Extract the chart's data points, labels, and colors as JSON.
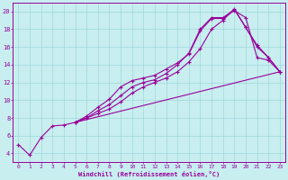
{
  "xlabel": "Windchill (Refroidissement éolien,°C)",
  "bg_color": "#c8eef0",
  "line_color": "#990099",
  "grid_color": "#a0d8d8",
  "curve1_x": [
    0,
    1,
    2,
    3,
    4,
    5,
    6,
    7,
    8,
    9,
    10,
    11,
    12,
    13,
    14,
    15,
    16,
    17,
    18,
    19,
    20,
    21,
    22,
    23
  ],
  "curve1_y": [
    5.0,
    3.8,
    5.8,
    7.1,
    7.2,
    7.5,
    8.2,
    9.2,
    10.1,
    11.5,
    12.2,
    12.5,
    12.8,
    13.5,
    14.2,
    15.2,
    17.8,
    19.2,
    19.2,
    20.1,
    19.3,
    14.8,
    14.5,
    13.2
  ],
  "curve2_x": [
    5,
    6,
    7,
    8,
    9,
    10,
    11,
    12,
    13,
    14,
    15,
    16,
    17,
    18,
    19,
    20,
    21,
    22,
    23
  ],
  "curve2_y": [
    7.5,
    8.0,
    8.8,
    9.5,
    10.5,
    11.5,
    12.0,
    12.3,
    13.0,
    14.0,
    15.3,
    18.0,
    19.3,
    19.3,
    20.2,
    18.2,
    16.2,
    14.8,
    13.2
  ],
  "curve3_x": [
    5,
    6,
    7,
    8,
    9,
    10,
    11,
    12,
    13,
    14,
    15,
    16,
    17,
    18,
    19,
    20,
    21,
    22,
    23
  ],
  "curve3_y": [
    7.5,
    8.0,
    8.5,
    9.0,
    9.8,
    10.8,
    11.5,
    12.0,
    12.5,
    13.2,
    14.3,
    15.8,
    18.0,
    19.0,
    20.3,
    18.2,
    16.0,
    14.8,
    13.2
  ],
  "curve4_x": [
    5,
    23
  ],
  "curve4_y": [
    7.5,
    13.2
  ],
  "ylim": [
    3.0,
    21.0
  ],
  "xlim": [
    -0.5,
    23.5
  ],
  "yticks": [
    4,
    6,
    8,
    10,
    12,
    14,
    16,
    18,
    20
  ],
  "xticks": [
    0,
    1,
    2,
    3,
    4,
    5,
    6,
    7,
    8,
    9,
    10,
    11,
    12,
    13,
    14,
    15,
    16,
    17,
    18,
    19,
    20,
    21,
    22,
    23
  ]
}
